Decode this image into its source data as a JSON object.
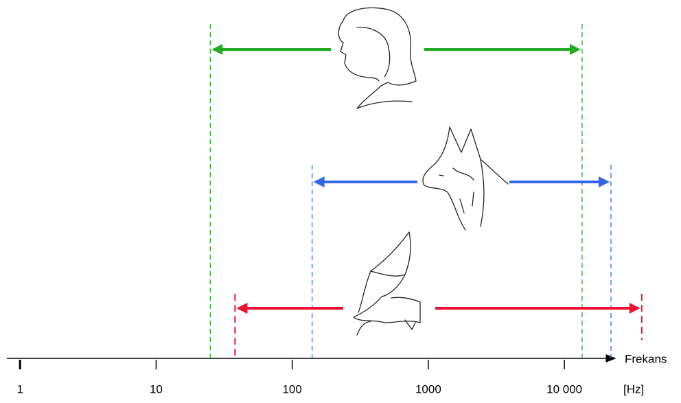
{
  "chart_data": {
    "type": "range",
    "xlabel": "Frekans",
    "xunit": "[Hz]",
    "xscale": "log",
    "xlim": [
      0.8,
      22000
    ],
    "xticks": [
      1,
      10,
      100,
      1000,
      {
        "value": 10000,
        "label": "10 000"
      }
    ],
    "series": [
      {
        "color": "#22aa22",
        "low": 25,
        "high": 13500
      },
      {
        "color": "#3366ee",
        "low": 140,
        "high": 22000
      },
      {
        "color": "#ee1133",
        "low": 38,
        "high": 37000
      }
    ]
  }
}
